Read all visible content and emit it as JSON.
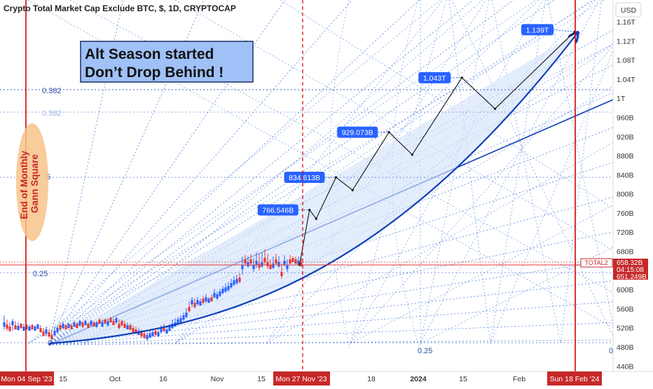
{
  "header": {
    "title": "Crypto Total Market Cap Exclude BTC, $, 1D, CRYPTOCAP",
    "currency": "USD"
  },
  "annotation_box": {
    "line1": "Alt Season started",
    "line2": "Don’t Drop Behind !"
  },
  "side_label": {
    "line1": "End of Monthly",
    "line2": "Gann Square"
  },
  "fib_labels": [
    "0.382",
    "0.382",
    ".5",
    "0.25",
    "0",
    "0.25",
    "0"
  ],
  "symbol_tag": "TOTAL2",
  "price_tags": {
    "last": "658.32B",
    "countdown": "04:15:08",
    "low": "651.249B"
  },
  "x_tags": {
    "left": "Mon 04 Sep '23",
    "mid": "Mon 27 Nov '23",
    "right": "Sun 18 Feb '24"
  },
  "colors": {
    "up": "#2962ff",
    "down": "#e53935",
    "vline": "#d50000",
    "curve": "#0d3fb8",
    "grid": "#4a7de0",
    "label_bg": "#2962ff",
    "annot_bg": "#9fc1f7",
    "oval": "#f7c38a"
  },
  "chart_data": {
    "type": "line",
    "title": "Crypto Total Market Cap Exclude BTC, $, 1D, CRYPTOCAP",
    "y_axis": {
      "ticks": [
        "1.16T",
        "1.12T",
        "1.08T",
        "1.04T",
        "1T",
        "960B",
        "920B",
        "880B",
        "840B",
        "800B",
        "760B",
        "720B",
        "680B",
        "640B",
        "600B",
        "560B",
        "520B",
        "480B",
        "440B"
      ],
      "range": [
        "440B",
        "1.18T"
      ],
      "scale": "linear"
    },
    "x_axis": {
      "ticks": [
        "15",
        "Oct",
        "16",
        "Nov",
        "15",
        "18",
        "2024",
        "15",
        "Feb"
      ]
    },
    "projection_points": [
      {
        "date": "Nov 27",
        "value": "658B"
      },
      {
        "date": "Nov 30",
        "value": "766.546B"
      },
      {
        "date": "Dec 2",
        "value": "748B"
      },
      {
        "date": "Dec 8",
        "value": "834.613B"
      },
      {
        "date": "Dec 13",
        "value": "808B"
      },
      {
        "date": "Dec 24",
        "value": "929.073B"
      },
      {
        "date": "Dec 31",
        "value": "882B"
      },
      {
        "date": "Jan 15",
        "value": "1.043T"
      },
      {
        "date": "Jan 25",
        "value": "978B"
      },
      {
        "date": "Feb 18",
        "value": "1.139T"
      }
    ],
    "labels": [
      "766.546B",
      "834.613B",
      "929.073B",
      "1.043T",
      "1.139T"
    ]
  }
}
